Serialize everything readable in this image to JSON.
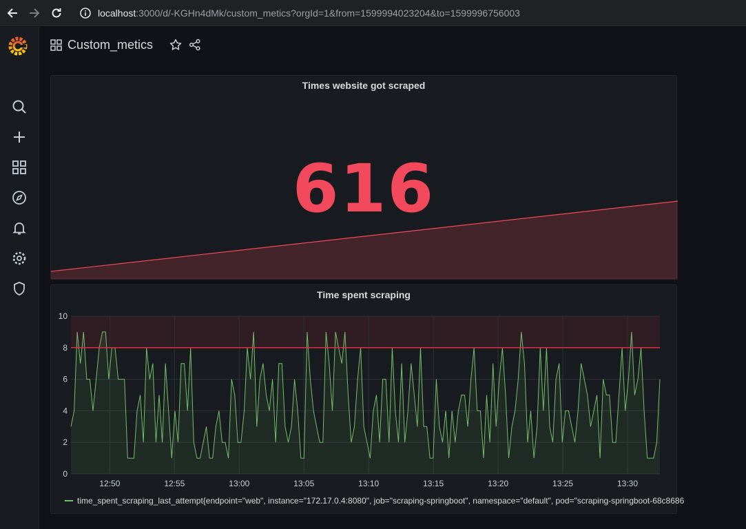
{
  "browser": {
    "url_host": "localhost",
    "url_rest": ":3000/d/-KGHn4dMk/custom_metics?orgId=1&from=1599994023204&to=1599996756003"
  },
  "dashboard": {
    "title": "Custom_metics"
  },
  "colors": {
    "stat_red": "#f2495c",
    "series_green": "#73bf69",
    "threshold_red": "#e02f44",
    "accent_orange": "#f05a28"
  },
  "stat_panel": {
    "title": "Times website got scraped",
    "value": "616",
    "sparkline_trend": [
      0.0,
      1.0
    ]
  },
  "graph_panel": {
    "title": "Time spent scraping",
    "legend": "time_spent_scraping_last_attempt{endpoint=\"web\", instance=\"172.17.0.4:8080\", job=\"scraping-springboot\", namespace=\"default\", pod=\"scraping-springboot-68c8686"
  },
  "chart_data": {
    "type": "line",
    "title": "Time spent scraping",
    "xlabel": "",
    "ylabel": "",
    "ylim": [
      0,
      10
    ],
    "y_ticks": [
      "0",
      "2",
      "4",
      "6",
      "8",
      "10"
    ],
    "x_ticks": [
      "12:50",
      "12:55",
      "13:00",
      "13:05",
      "13:10",
      "13:15",
      "13:20",
      "13:25",
      "13:30"
    ],
    "x_tick_minutes": [
      3,
      8,
      13,
      18,
      23,
      28,
      33,
      38,
      43
    ],
    "x_range_minutes": [
      0,
      45.5
    ],
    "threshold": 8,
    "grid": true,
    "legend_position": "bottom",
    "series": [
      {
        "name": "time_spent_scraping_last_attempt{endpoint=\"web\", instance=\"172.17.0.4:8080\", job=\"scraping-springboot\", namespace=\"default\", pod=\"scraping-springboot-68c8686",
        "values": [
          3,
          4,
          9,
          7,
          9,
          6,
          6,
          4,
          6,
          8,
          9,
          9,
          6,
          8,
          8,
          6,
          6,
          6,
          1,
          1,
          1,
          4,
          5,
          2,
          8,
          6,
          7,
          2,
          5,
          2,
          7,
          4,
          1,
          4,
          2,
          7,
          7,
          4,
          8,
          2,
          1,
          1,
          2,
          3,
          1,
          1,
          3,
          4,
          2,
          2,
          1,
          6,
          5,
          2,
          2,
          4,
          8,
          6,
          9,
          3,
          6,
          7,
          5,
          4,
          6,
          2,
          7,
          7,
          3,
          2,
          3,
          6,
          4,
          1,
          1,
          9,
          6,
          4,
          3,
          2,
          2,
          9,
          7,
          4,
          9,
          8,
          7,
          9,
          5,
          2,
          3,
          6,
          8,
          3,
          2,
          1,
          4,
          5,
          2,
          6,
          6,
          2,
          8,
          4,
          2,
          7,
          2,
          4,
          7,
          5,
          3,
          8,
          3,
          3,
          1,
          1,
          6,
          3,
          2,
          4,
          1,
          4,
          2,
          4,
          5,
          5,
          3,
          6,
          8,
          4,
          4,
          1,
          5,
          2,
          7,
          3,
          6,
          8,
          5,
          1,
          3,
          4,
          6,
          9,
          7,
          2,
          4,
          1,
          3,
          8,
          4,
          8,
          3,
          2,
          6,
          7,
          2,
          4,
          4,
          3,
          2,
          4,
          7,
          6,
          5,
          3,
          4,
          5,
          1,
          6,
          5,
          5,
          2,
          2,
          5,
          8,
          4,
          6,
          9,
          5,
          6,
          8,
          4,
          1,
          1,
          1,
          2,
          6
        ]
      }
    ]
  }
}
